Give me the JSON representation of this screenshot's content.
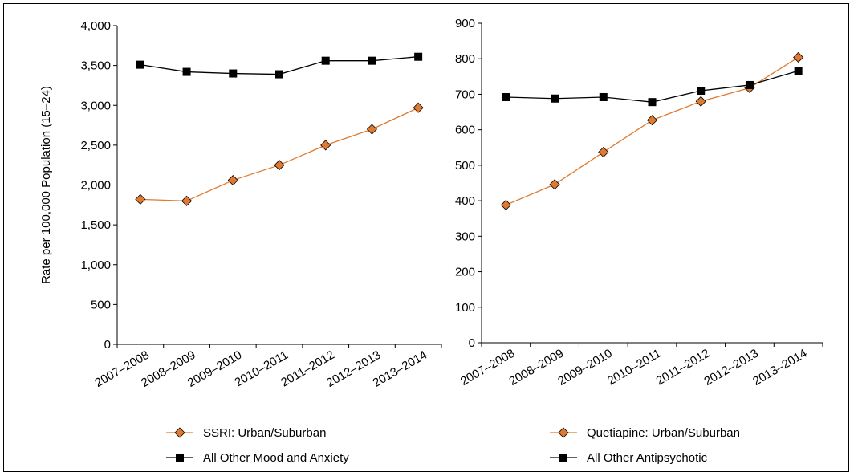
{
  "chart_data": [
    {
      "type": "line",
      "title": "",
      "xlabel": "",
      "ylabel": "Rate per 100,000 Population (15–24)",
      "categories": [
        "2007–2008",
        "2008–2009",
        "2009–2010",
        "2010–2011",
        "2011–2012",
        "2012–2013",
        "2013–2014"
      ],
      "ylim": [
        0,
        4000
      ],
      "yticks": [
        0,
        500,
        1000,
        1500,
        2000,
        2500,
        3000,
        3500,
        4000
      ],
      "ytick_labels": [
        "0",
        "500",
        "1,000",
        "1,500",
        "2,000",
        "2,500",
        "3,000",
        "3,500",
        "4,000"
      ],
      "grid": false,
      "legend_position": "bottom",
      "series": [
        {
          "name": "SSRI: Urban/Suburban",
          "color": "#E07A30",
          "marker": "diamond",
          "values": [
            1820,
            1800,
            2060,
            2250,
            2500,
            2700,
            2970
          ]
        },
        {
          "name": "All Other Mood and Anxiety",
          "color": "#000000",
          "marker": "square",
          "values": [
            3510,
            3420,
            3400,
            3390,
            3560,
            3560,
            3610
          ]
        }
      ]
    },
    {
      "type": "line",
      "title": "",
      "xlabel": "",
      "ylabel": "",
      "categories": [
        "2007–2008",
        "2008–2009",
        "2009–2010",
        "2010–2011",
        "2011–2012",
        "2012–2013",
        "2013–2014"
      ],
      "ylim": [
        0,
        900
      ],
      "yticks": [
        0,
        100,
        200,
        300,
        400,
        500,
        600,
        700,
        800,
        900
      ],
      "ytick_labels": [
        "0",
        "100",
        "200",
        "300",
        "400",
        "500",
        "600",
        "700",
        "800",
        "900"
      ],
      "grid": false,
      "legend_position": "bottom",
      "series": [
        {
          "name": "Quetiapine: Urban/Suburban",
          "color": "#E07A30",
          "marker": "diamond",
          "values": [
            388,
            446,
            537,
            627,
            680,
            718,
            804
          ]
        },
        {
          "name": "All Other Antipsychotic",
          "color": "#000000",
          "marker": "square",
          "values": [
            692,
            688,
            692,
            678,
            710,
            726,
            766
          ]
        }
      ]
    }
  ]
}
